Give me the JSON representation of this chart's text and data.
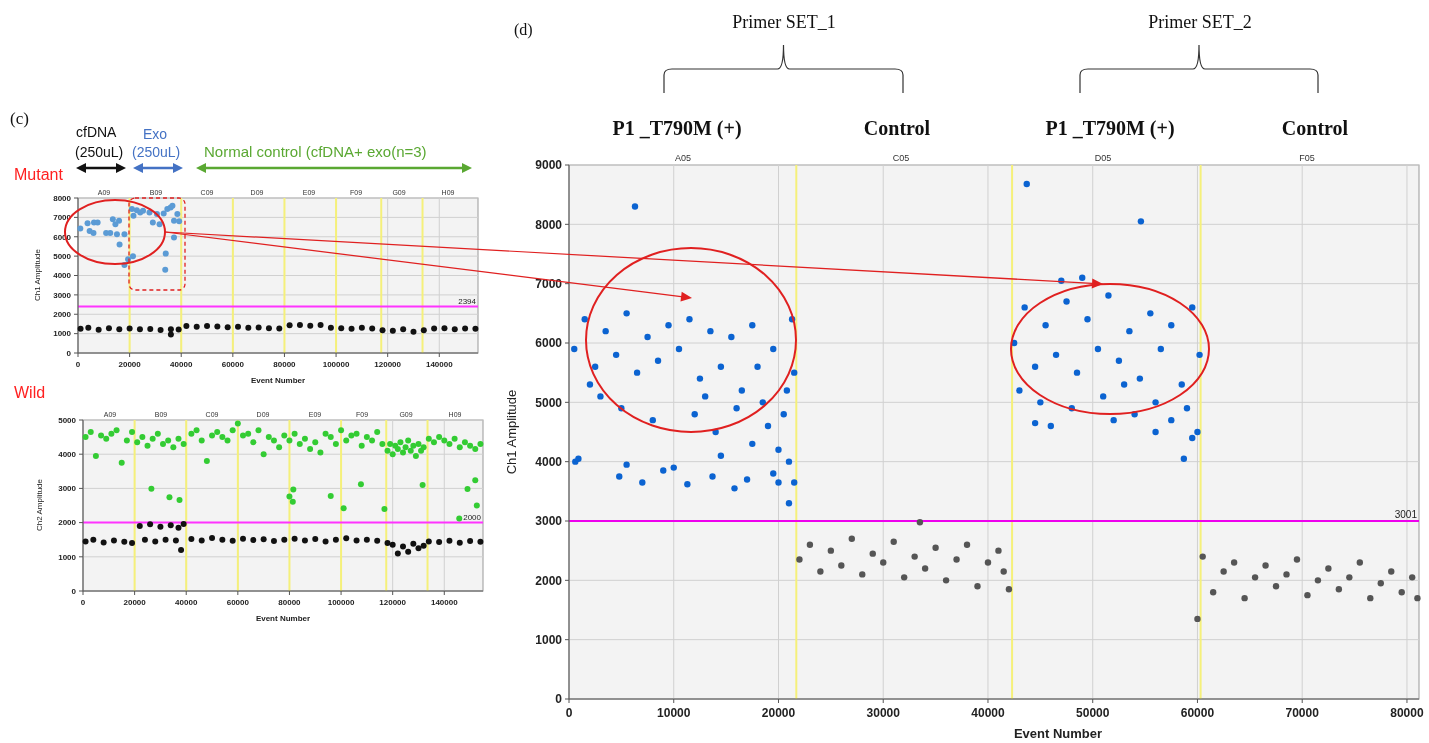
{
  "chart_data": [
    {
      "type": "scatter",
      "title": "Mutant",
      "xlabel": "Event Number",
      "ylabel": "Ch1 Amplitude",
      "xlim": [
        0,
        155000
      ],
      "ylim": [
        0,
        8000
      ],
      "xticks": [
        0,
        20000,
        40000,
        60000,
        80000,
        100000,
        120000,
        140000
      ],
      "yticks": [
        0,
        1000,
        2000,
        3000,
        4000,
        5000,
        6000,
        7000,
        8000
      ],
      "grid": true,
      "marker": "circle",
      "ref_lines": [
        {
          "axis": "y",
          "value": 2394,
          "label": "2394",
          "color": "#ff33ff"
        },
        {
          "axis": "x",
          "value": 20000,
          "color": "#f5f07a"
        },
        {
          "axis": "x",
          "value": 40000,
          "color": "#f5f07a"
        },
        {
          "axis": "x",
          "value": 60000,
          "color": "#f5f07a"
        },
        {
          "axis": "x",
          "value": 80000,
          "color": "#f5f07a"
        },
        {
          "axis": "x",
          "value": 100000,
          "color": "#f5f07a"
        },
        {
          "axis": "x",
          "value": 117500,
          "color": "#f5f07a"
        },
        {
          "axis": "x",
          "value": 133500,
          "color": "#f5f07a"
        }
      ],
      "annotations": [
        "(c)",
        "cfDNA",
        "(250uL)",
        "Exo",
        "(250uL)",
        "Normal control (cfDNA+ exo(n=3)",
        "A09",
        "B09",
        "C09",
        "D09",
        "E09",
        "F09",
        "G09",
        "H09"
      ],
      "series": [
        {
          "color": "#5b9bd5",
          "x": [
            900,
            3700,
            4500,
            6000,
            6200,
            7600,
            10900,
            12500,
            13500,
            14500,
            15100,
            15900,
            16100,
            18000,
            18000,
            19400,
            20900,
            21500,
            22800,
            24100,
            25200,
            27700,
            29000,
            30600,
            31600,
            33200,
            34000,
            33800,
            34600,
            35900,
            36600,
            37200,
            37200,
            38500,
            39200,
            21300
          ],
          "values": [
            6420,
            6700,
            6300,
            6200,
            6740,
            6740,
            6200,
            6200,
            6900,
            6650,
            6130,
            6820,
            5600,
            6130,
            4540,
            4840,
            7430,
            7080,
            7370,
            7250,
            7340,
            7250,
            6740,
            7170,
            6650,
            7200,
            5130,
            4300,
            7430,
            7510,
            7600,
            6820,
            5960,
            7170,
            6800,
            5000
          ]
        },
        {
          "color": "#111111",
          "x": [
            1000,
            4000,
            8000,
            12000,
            16000,
            20000,
            24000,
            28000,
            32000,
            36000,
            39000,
            42000,
            46000,
            50000,
            54000,
            58000,
            62000,
            66000,
            70000,
            74000,
            78000,
            82000,
            86000,
            90000,
            94000,
            98000,
            102000,
            106000,
            110000,
            114000,
            118000,
            122000,
            126000,
            130000,
            134000,
            138000,
            142000,
            146000,
            150000,
            154000,
            36000
          ],
          "values": [
            1250,
            1300,
            1200,
            1280,
            1230,
            1260,
            1220,
            1240,
            1190,
            1230,
            1210,
            1390,
            1360,
            1400,
            1370,
            1330,
            1350,
            1300,
            1320,
            1280,
            1260,
            1430,
            1450,
            1410,
            1440,
            1300,
            1280,
            1250,
            1300,
            1270,
            1180,
            1150,
            1220,
            1100,
            1180,
            1260,
            1280,
            1230,
            1270,
            1250,
            950
          ]
        }
      ]
    },
    {
      "type": "scatter",
      "title": "Wild",
      "xlabel": "Event Number",
      "ylabel": "Ch2 Amplitude",
      "xlim": [
        0,
        155000
      ],
      "ylim": [
        0,
        5000
      ],
      "xticks": [
        0,
        20000,
        40000,
        60000,
        80000,
        100000,
        120000,
        140000
      ],
      "yticks": [
        0,
        1000,
        2000,
        3000,
        4000,
        5000
      ],
      "annotations": [
        "A09",
        "B09",
        "C09",
        "D09",
        "E09",
        "F09",
        "G09",
        "H09"
      ],
      "grid": true,
      "marker": "circle",
      "ref_lines": [
        {
          "axis": "y",
          "value": 2000,
          "label": "2000",
          "color": "#ff33ff"
        },
        {
          "axis": "x",
          "value": 20000,
          "color": "#f5f07a"
        },
        {
          "axis": "x",
          "value": 40000,
          "color": "#f5f07a"
        },
        {
          "axis": "x",
          "value": 60000,
          "color": "#f5f07a"
        },
        {
          "axis": "x",
          "value": 80000,
          "color": "#f5f07a"
        },
        {
          "axis": "x",
          "value": 100000,
          "color": "#f5f07a"
        },
        {
          "axis": "x",
          "value": 117500,
          "color": "#f5f07a"
        },
        {
          "axis": "x",
          "value": 133500,
          "color": "#f5f07a"
        }
      ],
      "series": [
        {
          "color": "#33cc33",
          "x": [
            1000,
            3000,
            5000,
            7000,
            9000,
            11000,
            13000,
            15000,
            17000,
            19000,
            21000,
            23000,
            25000,
            27000,
            29000,
            31000,
            33000,
            35000,
            37000,
            39000,
            42000,
            44000,
            46000,
            48000,
            50000,
            52000,
            54000,
            56000,
            58000,
            60000,
            62000,
            64000,
            66000,
            68000,
            70000,
            72000,
            74000,
            76000,
            78000,
            80000,
            82000,
            84000,
            86000,
            88000,
            90000,
            92000,
            94000,
            96000,
            98000,
            100000,
            102000,
            104000,
            106000,
            108000,
            110000,
            112000,
            114000,
            116000,
            118000,
            119000,
            120000,
            121000,
            122000,
            123000,
            124000,
            125000,
            126000,
            127000,
            128000,
            129000,
            130000,
            131000,
            132000,
            134000,
            136000,
            138000,
            140000,
            142000,
            144000,
            146000,
            148000,
            150000,
            152000,
            154000,
            26500,
            33500,
            37400,
            80000,
            81300,
            81500,
            96000,
            101000,
            107700,
            116800,
            131600,
            145800,
            149000,
            152000,
            152600
          ],
          "values": [
            4500,
            4650,
            3950,
            4550,
            4450,
            4600,
            4700,
            3750,
            4400,
            4650,
            4350,
            4500,
            4250,
            4450,
            4600,
            4300,
            4400,
            4200,
            4450,
            4300,
            4600,
            4700,
            4400,
            3800,
            4550,
            4650,
            4500,
            4400,
            4700,
            4900,
            4550,
            4600,
            4350,
            4700,
            4000,
            4500,
            4400,
            4200,
            4550,
            4400,
            4600,
            4300,
            4450,
            4150,
            4350,
            4050,
            4600,
            4500,
            4300,
            4700,
            4400,
            4550,
            4600,
            4250,
            4500,
            4400,
            4650,
            4300,
            4100,
            4300,
            4000,
            4250,
            4150,
            4350,
            4050,
            4200,
            4400,
            4100,
            4250,
            3950,
            4300,
            4100,
            4200,
            4450,
            4350,
            4500,
            4400,
            4300,
            4450,
            4200,
            4350,
            4250,
            4150,
            4300,
            2990,
            2740,
            2660,
            2760,
            2610,
            2970,
            2780,
            2420,
            3120,
            2400,
            3100,
            2120,
            2980,
            3240,
            2500
          ]
        },
        {
          "color": "#111111",
          "x": [
            1000,
            4000,
            8000,
            12000,
            16000,
            19000,
            22000,
            24000,
            26000,
            28000,
            30000,
            32000,
            34000,
            36000,
            37000,
            38000,
            39000,
            42000,
            46000,
            50000,
            54000,
            58000,
            62000,
            66000,
            70000,
            74000,
            78000,
            82000,
            86000,
            90000,
            94000,
            98000,
            102000,
            106000,
            110000,
            114000,
            118000,
            120000,
            122000,
            124000,
            126000,
            128000,
            130000,
            132000,
            134000,
            138000,
            142000,
            146000,
            150000,
            154000
          ],
          "values": [
            1450,
            1500,
            1420,
            1480,
            1440,
            1400,
            1900,
            1500,
            1950,
            1450,
            1880,
            1500,
            1920,
            1480,
            1850,
            1200,
            1960,
            1520,
            1480,
            1550,
            1500,
            1470,
            1530,
            1490,
            1510,
            1460,
            1500,
            1530,
            1480,
            1520,
            1450,
            1500,
            1540,
            1480,
            1500,
            1470,
            1400,
            1350,
            1100,
            1300,
            1150,
            1380,
            1250,
            1320,
            1450,
            1430,
            1470,
            1410,
            1460,
            1440
          ]
        }
      ]
    },
    {
      "type": "scatter",
      "title": "(d)",
      "xlabel": "Event Number",
      "ylabel": "Ch1 Amplitude",
      "xlim": [
        0,
        81150
      ],
      "ylim": [
        0,
        9000
      ],
      "xticks": [
        0,
        10000,
        20000,
        30000,
        40000,
        50000,
        60000,
        70000,
        80000
      ],
      "yticks": [
        0,
        1000,
        2000,
        3000,
        4000,
        5000,
        6000,
        7000,
        8000,
        9000
      ],
      "grid": true,
      "marker": "circle",
      "ref_lines": [
        {
          "axis": "y",
          "value": 3001,
          "label": "3001",
          "color": "#ee00ee"
        },
        {
          "axis": "x",
          "value": 21700,
          "color": "#f5f07a"
        },
        {
          "axis": "x",
          "value": 42300,
          "color": "#f5f07a"
        },
        {
          "axis": "x",
          "value": 60300,
          "color": "#f5f07a"
        }
      ],
      "annotations": [
        "Primer SET_1",
        "Primer SET_2",
        "P1 _T790M (+)",
        "Control",
        "P1 _T790M (+)",
        "Control",
        "A05",
        "C05",
        "D05",
        "F05"
      ],
      "series": [
        {
          "color": "#0b63d1",
          "x": [
            500,
            1500,
            2500,
            3500,
            4500,
            5500,
            6500,
            7500,
            8500,
            9500,
            10500,
            11500,
            12500,
            13500,
            14500,
            15500,
            16500,
            17500,
            18500,
            19500,
            20500,
            21300,
            21500,
            2000,
            3000,
            5000,
            8000,
            12000,
            14000,
            16000,
            17500,
            19000,
            20000,
            21000,
            20800,
            18000,
            13000,
            6300,
            600,
            900,
            4800,
            5500,
            7000,
            9000,
            10000,
            11300,
            13700,
            15800,
            17000,
            20000,
            21000,
            21500,
            19500,
            14500,
            42500,
            43500,
            44500,
            45500,
            46500,
            47500,
            48500,
            49500,
            50500,
            51500,
            52500,
            53500,
            54500,
            55500,
            56500,
            57500,
            58500,
            59500,
            60200,
            43000,
            45000,
            48000,
            51000,
            54000,
            56000,
            57500,
            59000,
            60000,
            53000,
            43700,
            54600,
            49000,
            47000,
            58700,
            44500,
            46000,
            52000,
            56000,
            59500
          ],
          "values": [
            5900,
            6400,
            5600,
            6200,
            5800,
            6500,
            5500,
            6100,
            5700,
            6300,
            5900,
            6400,
            5400,
            6200,
            5600,
            6100,
            5200,
            6300,
            5000,
            5900,
            4800,
            6400,
            5500,
            5300,
            5100,
            4900,
            4700,
            4800,
            4500,
            4900,
            4300,
            4600,
            4200,
            4000,
            5200,
            5600,
            5100,
            8300,
            4000,
            4050,
            3750,
            3950,
            3650,
            3850,
            3900,
            3620,
            3750,
            3550,
            3700,
            3650,
            3300,
            3650,
            3800,
            4100,
            6000,
            6600,
            5600,
            6300,
            5800,
            6700,
            5500,
            6400,
            5900,
            6800,
            5700,
            6200,
            5400,
            6500,
            5900,
            6300,
            5300,
            6600,
            5800,
            5200,
            5000,
            4900,
            5100,
            4800,
            5000,
            4700,
            4900,
            4500,
            5300,
            8680,
            8050,
            7100,
            7050,
            4050,
            4650,
            4600,
            4700,
            4500,
            4400
          ]
        },
        {
          "color": "#555555",
          "x": [
            22000,
            23000,
            24000,
            25000,
            26000,
            27000,
            28000,
            29000,
            30000,
            31000,
            32000,
            33000,
            33500,
            34000,
            35000,
            36000,
            37000,
            38000,
            39000,
            40000,
            41000,
            42000,
            41500,
            60500,
            61500,
            62500,
            63500,
            64500,
            65500,
            66500,
            67500,
            68500,
            69500,
            70500,
            71500,
            72500,
            73500,
            74500,
            75500,
            76500,
            77500,
            78500,
            79500,
            80500,
            81000,
            60000
          ],
          "values": [
            2350,
            2600,
            2150,
            2500,
            2250,
            2700,
            2100,
            2450,
            2300,
            2650,
            2050,
            2400,
            2980,
            2200,
            2550,
            2000,
            2350,
            2600,
            1900,
            2300,
            2500,
            1850,
            2150,
            2400,
            1800,
            2150,
            2300,
            1700,
            2050,
            2250,
            1900,
            2100,
            2350,
            1750,
            2000,
            2200,
            1850,
            2050,
            2300,
            1700,
            1950,
            2150,
            1800,
            2050,
            1700,
            1350
          ]
        }
      ]
    }
  ]
}
